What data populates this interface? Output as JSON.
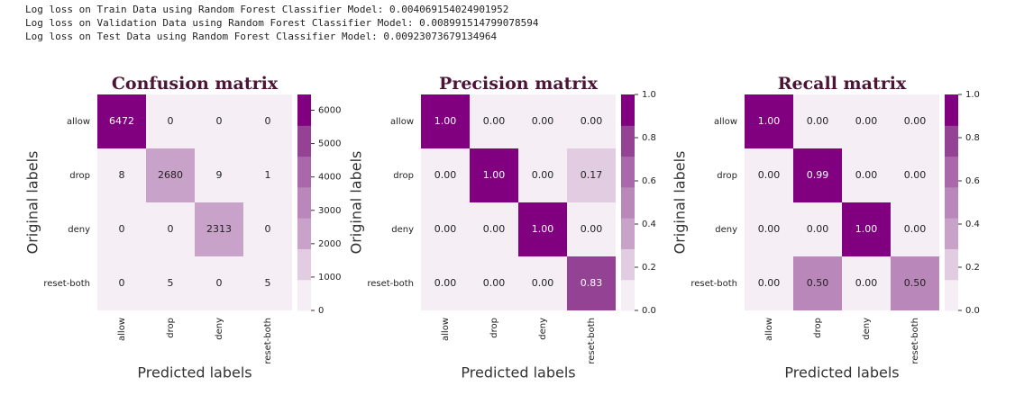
{
  "log_lines": [
    "Log loss on Train Data using Random Forest Classifier Model: 0.004069154024901952",
    "Log loss on Validation Data using Random Forest Classifier Model: 0.008991514799078594",
    "Log loss on Test Data using Random Forest Classifier Model: 0.00923073679134964"
  ],
  "chart_data": [
    {
      "type": "heatmap",
      "title": "Confusion matrix",
      "xlabel": "Predicted labels",
      "ylabel": "Original labels",
      "x_categories": [
        "allow",
        "drop",
        "deny",
        "reset-both"
      ],
      "y_categories": [
        "allow",
        "drop",
        "deny",
        "reset-both"
      ],
      "values": [
        [
          6472,
          0,
          0,
          0
        ],
        [
          8,
          2680,
          9,
          1
        ],
        [
          0,
          0,
          2313,
          0
        ],
        [
          0,
          5,
          0,
          5
        ]
      ],
      "clim": [
        0,
        6472
      ],
      "cticks": [
        0,
        1000,
        2000,
        3000,
        4000,
        5000,
        6000
      ],
      "colors": [
        "#f5eef5",
        "#e2cce2",
        "#c8a2c8",
        "#b987b9",
        "#a968a9",
        "#944294",
        "#800080"
      ]
    },
    {
      "type": "heatmap",
      "title": "Precision matrix",
      "xlabel": "Predicted labels",
      "ylabel": "Original labels",
      "x_categories": [
        "allow",
        "drop",
        "deny",
        "reset-both"
      ],
      "y_categories": [
        "allow",
        "drop",
        "deny",
        "reset-both"
      ],
      "values": [
        [
          1,
          0,
          0,
          0
        ],
        [
          0,
          1,
          0,
          0.17
        ],
        [
          0,
          0,
          1,
          0
        ],
        [
          0,
          0,
          0,
          0.83
        ]
      ],
      "value_labels": [
        [
          "1.00",
          "0.00",
          "0.00",
          "0.00"
        ],
        [
          "0.00",
          "1.00",
          "0.00",
          "0.17"
        ],
        [
          "0.00",
          "0.00",
          "1.00",
          "0.00"
        ],
        [
          "0.00",
          "0.00",
          "0.00",
          "0.83"
        ]
      ],
      "clim": [
        0,
        1
      ],
      "cticks": [
        {
          "value": 0,
          "label": "0.0"
        },
        0.2,
        0.4,
        0.6,
        0.8,
        {
          "value": 1,
          "label": "1.0"
        }
      ],
      "colors": [
        "#f5eef5",
        "#e2cce2",
        "#c8a2c8",
        "#b987b9",
        "#a968a9",
        "#944294",
        "#800080"
      ]
    },
    {
      "type": "heatmap",
      "title": "Recall matrix",
      "xlabel": "Predicted labels",
      "ylabel": "Original labels",
      "x_categories": [
        "allow",
        "drop",
        "deny",
        "reset-both"
      ],
      "y_categories": [
        "allow",
        "drop",
        "deny",
        "reset-both"
      ],
      "values": [
        [
          1,
          0,
          0,
          0
        ],
        [
          0,
          0.99,
          0,
          0
        ],
        [
          0,
          0,
          1,
          0
        ],
        [
          0,
          0.5,
          0,
          0.5
        ]
      ],
      "value_labels": [
        [
          "1.00",
          "0.00",
          "0.00",
          "0.00"
        ],
        [
          "0.00",
          "0.99",
          "0.00",
          "0.00"
        ],
        [
          "0.00",
          "0.00",
          "1.00",
          "0.00"
        ],
        [
          "0.00",
          "0.50",
          "0.00",
          "0.50"
        ]
      ],
      "clim": [
        0,
        1
      ],
      "cticks": [
        {
          "value": 0,
          "label": "0.0"
        },
        0.2,
        0.4,
        0.6,
        0.8,
        {
          "value": 1,
          "label": "1.0"
        }
      ],
      "colors": [
        "#f5eef5",
        "#e2cce2",
        "#c8a2c8",
        "#b987b9",
        "#a968a9",
        "#944294",
        "#800080"
      ]
    }
  ]
}
